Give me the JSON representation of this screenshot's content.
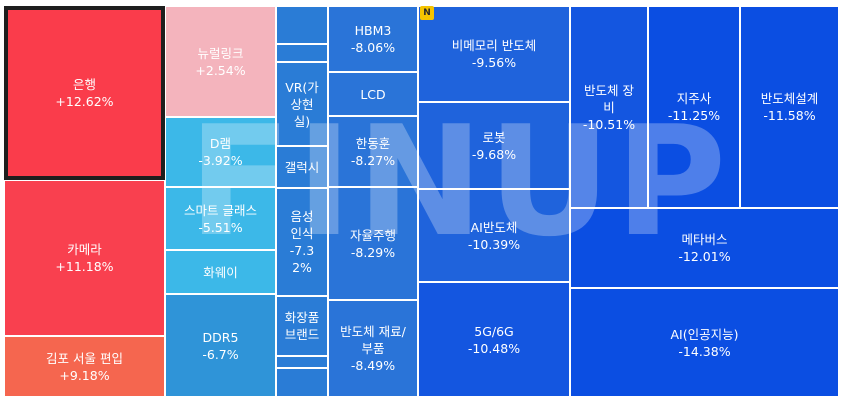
{
  "watermark": "FINUP",
  "badge": "N",
  "tiles": [
    {
      "name": "은행",
      "pct": "+12.62%"
    },
    {
      "name": "카메라",
      "pct": "+11.18%"
    },
    {
      "name": "김포 서울 편입",
      "pct": "+9.18%"
    },
    {
      "name": "뉴럴링크",
      "pct": "+2.54%"
    },
    {
      "name": "D램",
      "pct": "-3.92%"
    },
    {
      "name": "스마트 글래스",
      "pct": "-5.51%"
    },
    {
      "name": "화웨이",
      "pct": ""
    },
    {
      "name": "DDR5",
      "pct": "-6.7%"
    },
    {
      "name": "VR(가상현실)",
      "pct": ""
    },
    {
      "name": "갤럭시",
      "pct": ""
    },
    {
      "name": "음성인식",
      "pct": "-7.32%"
    },
    {
      "name": "화장품 브랜드",
      "pct": ""
    },
    {
      "name": "HBM3",
      "pct": "-8.06%"
    },
    {
      "name": "LCD",
      "pct": ""
    },
    {
      "name": "한동훈",
      "pct": "-8.27%"
    },
    {
      "name": "자율주행",
      "pct": "-8.29%"
    },
    {
      "name": "반도체 재료/부품",
      "pct": "-8.49%"
    },
    {
      "name": "비메모리 반도체",
      "pct": "-9.56%"
    },
    {
      "name": "로봇",
      "pct": "-9.68%"
    },
    {
      "name": "AI반도체",
      "pct": "-10.39%"
    },
    {
      "name": "5G/6G",
      "pct": "-10.48%"
    },
    {
      "name": "반도체 장비",
      "pct": "-10.51%"
    },
    {
      "name": "지주사",
      "pct": "-11.25%"
    },
    {
      "name": "반도체설계",
      "pct": "-11.58%"
    },
    {
      "name": "메타버스",
      "pct": "-12.01%"
    },
    {
      "name": "AI(인공지능)",
      "pct": "-14.38%"
    },
    {
      "name": "",
      "pct": ""
    },
    {
      "name": "",
      "pct": ""
    },
    {
      "name": "",
      "pct": ""
    },
    {
      "name": "",
      "pct": ""
    }
  ]
}
